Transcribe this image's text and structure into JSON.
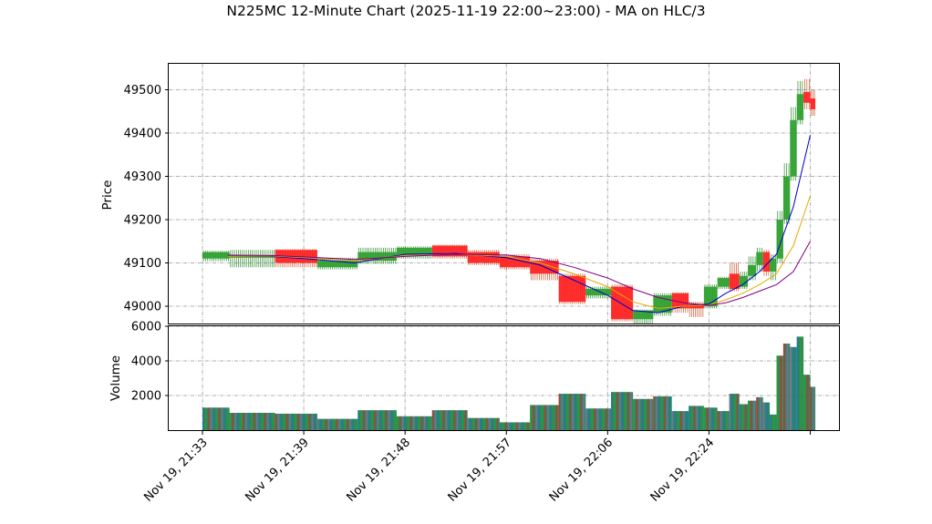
{
  "chart_data": {
    "type": "candlestick",
    "title": "N225MC 12-Minute Chart (2025-11-19 22:00~23:00) - MA on HLC/3",
    "price_panel": {
      "ylabel": "Price",
      "ylim": [
        48960,
        49560
      ],
      "yticks": [
        49000,
        49100,
        49200,
        49300,
        49400,
        49500
      ]
    },
    "volume_panel": {
      "ylabel": "Volume",
      "ylim": [
        0,
        6000
      ],
      "yticks": [
        2000,
        4000,
        6000
      ]
    },
    "x_ticks": [
      {
        "label": "Nov 19, 21:33",
        "t": 0
      },
      {
        "label": "Nov 19, 21:39",
        "t": 6
      },
      {
        "label": "Nov 19, 21:48",
        "t": 12
      },
      {
        "label": "Nov 19, 21:57",
        "t": 18
      },
      {
        "label": "Nov 19, 22:06",
        "t": 24
      },
      {
        "label": "Nov 19, 22:24",
        "t": 30
      },
      {
        "label": "",
        "t": 36
      }
    ],
    "x_range": [
      -2,
      37.7
    ],
    "blocks": [
      {
        "t0": 0.0,
        "t1": 1.6,
        "o": 49110,
        "c": 49125,
        "h": 49128,
        "l": 49104,
        "v": 1300
      },
      {
        "t0": 1.6,
        "t1": 4.3,
        "o": 49112,
        "c": 49118,
        "h": 49130,
        "l": 49090,
        "v": 1000
      },
      {
        "t0": 4.3,
        "t1": 6.8,
        "o": 49130,
        "c": 49100,
        "h": 49132,
        "l": 49090,
        "v": 950
      },
      {
        "t0": 6.8,
        "t1": 9.2,
        "o": 49090,
        "c": 49105,
        "h": 49112,
        "l": 49085,
        "v": 650
      },
      {
        "t0": 9.2,
        "t1": 11.5,
        "o": 49105,
        "c": 49125,
        "h": 49135,
        "l": 49098,
        "v": 1150
      },
      {
        "t0": 11.5,
        "t1": 13.6,
        "o": 49118,
        "c": 49135,
        "h": 49138,
        "l": 49110,
        "v": 800
      },
      {
        "t0": 13.6,
        "t1": 15.7,
        "o": 49140,
        "c": 49115,
        "h": 49142,
        "l": 49110,
        "v": 1150
      },
      {
        "t0": 15.7,
        "t1": 17.6,
        "o": 49125,
        "c": 49100,
        "h": 49130,
        "l": 49095,
        "v": 700
      },
      {
        "t0": 17.6,
        "t1": 19.4,
        "o": 49115,
        "c": 49090,
        "h": 49120,
        "l": 49085,
        "v": 450
      },
      {
        "t0": 19.4,
        "t1": 21.1,
        "o": 49105,
        "c": 49075,
        "h": 49110,
        "l": 49060,
        "v": 1450
      },
      {
        "t0": 21.1,
        "t1": 22.7,
        "o": 49070,
        "c": 49010,
        "h": 49075,
        "l": 49005,
        "v": 2100
      },
      {
        "t0": 22.7,
        "t1": 24.2,
        "o": 49025,
        "c": 49040,
        "h": 49045,
        "l": 49018,
        "v": 1250
      },
      {
        "t0": 24.2,
        "t1": 25.5,
        "o": 49045,
        "c": 48970,
        "h": 49050,
        "l": 48965,
        "v": 2200
      },
      {
        "t0": 25.5,
        "t1": 26.7,
        "o": 48970,
        "c": 48990,
        "h": 48992,
        "l": 48960,
        "v": 1800
      },
      {
        "t0": 26.7,
        "t1": 27.8,
        "o": 48985,
        "c": 49025,
        "h": 49030,
        "l": 48978,
        "v": 1950
      },
      {
        "t0": 27.8,
        "t1": 28.8,
        "o": 49030,
        "c": 48995,
        "h": 49032,
        "l": 48985,
        "v": 1100
      },
      {
        "t0": 28.8,
        "t1": 29.7,
        "o": 49005,
        "c": 48995,
        "h": 49010,
        "l": 48975,
        "v": 1400
      },
      {
        "t0": 29.7,
        "t1": 30.5,
        "o": 49000,
        "c": 49045,
        "h": 49050,
        "l": 48995,
        "v": 1300
      },
      {
        "t0": 30.5,
        "t1": 31.2,
        "o": 49045,
        "c": 49065,
        "h": 49068,
        "l": 49040,
        "v": 1100
      },
      {
        "t0": 31.2,
        "t1": 31.8,
        "o": 49075,
        "c": 49040,
        "h": 49100,
        "l": 49035,
        "v": 2100
      },
      {
        "t0": 31.8,
        "t1": 32.3,
        "o": 49045,
        "c": 49070,
        "h": 49080,
        "l": 49040,
        "v": 1500
      },
      {
        "t0": 32.3,
        "t1": 32.8,
        "o": 49070,
        "c": 49095,
        "h": 49115,
        "l": 49060,
        "v": 1700
      },
      {
        "t0": 32.8,
        "t1": 33.2,
        "o": 49095,
        "c": 49125,
        "h": 49135,
        "l": 49080,
        "v": 1900
      },
      {
        "t0": 33.2,
        "t1": 33.6,
        "o": 49125,
        "c": 49080,
        "h": 49130,
        "l": 49070,
        "v": 1600
      },
      {
        "t0": 33.6,
        "t1": 34.0,
        "o": 49080,
        "c": 49110,
        "h": 49120,
        "l": 49060,
        "v": 900
      },
      {
        "t0": 34.0,
        "t1": 34.4,
        "o": 49110,
        "c": 49200,
        "h": 49220,
        "l": 49100,
        "v": 4300
      },
      {
        "t0": 34.4,
        "t1": 34.8,
        "o": 49200,
        "c": 49300,
        "h": 49330,
        "l": 49190,
        "v": 5000
      },
      {
        "t0": 34.8,
        "t1": 35.2,
        "o": 49300,
        "c": 49430,
        "h": 49460,
        "l": 49290,
        "v": 4800
      },
      {
        "t0": 35.2,
        "t1": 35.6,
        "o": 49430,
        "c": 49490,
        "h": 49520,
        "l": 49420,
        "v": 5400
      },
      {
        "t0": 35.6,
        "t1": 36.0,
        "o": 49495,
        "c": 49470,
        "h": 49525,
        "l": 49455,
        "v": 3200
      },
      {
        "t0": 36.0,
        "t1": 36.3,
        "o": 49480,
        "c": 49455,
        "h": 49500,
        "l": 49440,
        "v": 2500
      }
    ],
    "ma_series": [
      {
        "color": "#0000cc",
        "points": [
          [
            1.5,
            49115
          ],
          [
            4,
            49115
          ],
          [
            6,
            49110
          ],
          [
            9,
            49100
          ],
          [
            12,
            49120
          ],
          [
            15,
            49122
          ],
          [
            18,
            49112
          ],
          [
            20,
            49095
          ],
          [
            22,
            49060
          ],
          [
            24,
            49025
          ],
          [
            25.5,
            48990
          ],
          [
            27,
            48985
          ],
          [
            28.5,
            49000
          ],
          [
            30,
            49005
          ],
          [
            31,
            49030
          ],
          [
            32,
            49050
          ],
          [
            33,
            49080
          ],
          [
            34,
            49120
          ],
          [
            35,
            49230
          ],
          [
            36,
            49395
          ]
        ]
      },
      {
        "color": "#e6a800",
        "points": [
          [
            1.5,
            49115
          ],
          [
            4,
            49116
          ],
          [
            6,
            49112
          ],
          [
            9,
            49105
          ],
          [
            12,
            49117
          ],
          [
            15,
            49120
          ],
          [
            18,
            49115
          ],
          [
            20,
            49100
          ],
          [
            22,
            49075
          ],
          [
            24,
            49045
          ],
          [
            25.5,
            49010
          ],
          [
            27,
            48995
          ],
          [
            28.5,
            49000
          ],
          [
            30,
            49003
          ],
          [
            31,
            49015
          ],
          [
            32,
            49030
          ],
          [
            33,
            49050
          ],
          [
            34,
            49075
          ],
          [
            35,
            49140
          ],
          [
            36,
            49255
          ]
        ]
      },
      {
        "color": "#800080",
        "points": [
          [
            1.5,
            49118
          ],
          [
            4,
            49117
          ],
          [
            6,
            49114
          ],
          [
            9,
            49108
          ],
          [
            12,
            49115
          ],
          [
            15,
            49120
          ],
          [
            18,
            49118
          ],
          [
            20,
            49110
          ],
          [
            22,
            49090
          ],
          [
            24,
            49065
          ],
          [
            25.5,
            49040
          ],
          [
            27,
            49020
          ],
          [
            28.5,
            49008
          ],
          [
            30,
            49002
          ],
          [
            31,
            49008
          ],
          [
            32,
            49020
          ],
          [
            33,
            49035
          ],
          [
            34,
            49050
          ],
          [
            35,
            49080
          ],
          [
            36,
            49150
          ]
        ]
      }
    ]
  }
}
